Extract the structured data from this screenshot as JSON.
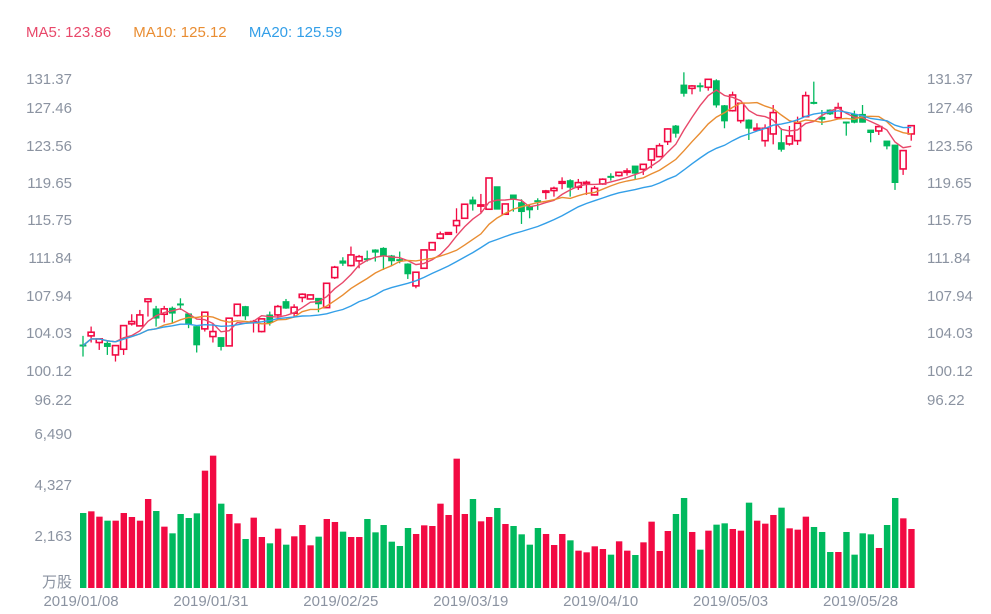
{
  "legend": {
    "ma5": "MA5: 123.86",
    "ma10": "MA10: 125.12",
    "ma20": "MA20: 125.59"
  },
  "colors": {
    "up": "#f20a43",
    "down": "#00b95e",
    "ma5": "#e8486a",
    "ma10": "#e98d32",
    "ma20": "#339fe8",
    "axis": "#8b93a1"
  },
  "chart_data": {
    "type": "candlestick",
    "title": "",
    "price_axis": {
      "labels": [
        "131.37",
        "127.46",
        "123.56",
        "119.65",
        "115.75",
        "111.84",
        "107.94",
        "104.03",
        "100.12",
        "96.22"
      ],
      "range": [
        96.22,
        131.37
      ]
    },
    "volume_axis": {
      "labels": [
        "6,490",
        "4,327",
        "2,163"
      ],
      "unit": "万股",
      "range": [
        0,
        6490
      ]
    },
    "date_labels": [
      "2019/01/08",
      "2019/01/31",
      "2019/02/25",
      "2019/03/19",
      "2019/04/10",
      "2019/05/03",
      "2019/05/28"
    ],
    "date_label_indices": [
      0,
      16,
      32,
      48,
      64,
      80,
      96
    ],
    "ma_periods": [
      5,
      10,
      20
    ],
    "ohlc_fields": [
      "open",
      "high",
      "low",
      "close"
    ],
    "ohlc": [
      [
        103.82,
        104.76,
        102.61,
        103.75
      ],
      [
        104.76,
        105.73,
        104.07,
        105.14
      ],
      [
        104.07,
        104.45,
        103.3,
        104.45
      ],
      [
        103.99,
        104.17,
        102.78,
        103.65
      ],
      [
        102.78,
        103.75,
        102.09,
        103.75
      ],
      [
        103.37,
        105.83,
        102.78,
        105.83
      ],
      [
        106.01,
        107.01,
        105.83,
        106.25
      ],
      [
        105.8,
        107.46,
        105.73,
        106.94
      ],
      [
        108.33,
        108.67,
        106.77,
        108.6
      ],
      [
        107.57,
        107.88,
        105.73,
        106.6
      ],
      [
        107.01,
        107.88,
        106.15,
        107.57
      ],
      [
        107.64,
        107.81,
        106.08,
        107.12
      ],
      [
        108.09,
        108.67,
        107.46,
        108.02
      ],
      [
        107.05,
        107.12,
        105.56,
        106.01
      ],
      [
        105.73,
        105.8,
        103.03,
        103.82
      ],
      [
        105.49,
        107.22,
        105.21,
        107.22
      ],
      [
        104.69,
        106.01,
        104.07,
        105.21
      ],
      [
        104.59,
        104.59,
        103.24,
        103.65
      ],
      [
        103.72,
        106.6,
        103.72,
        106.6
      ],
      [
        106.87,
        108.05,
        106.77,
        108.05
      ],
      [
        107.81,
        107.88,
        106.42,
        106.84
      ],
      [
        106.15,
        106.42,
        105.11,
        106.25
      ],
      [
        105.21,
        106.53,
        105.11,
        106.53
      ],
      [
        106.94,
        107.29,
        105.83,
        106.15
      ],
      [
        106.94,
        107.98,
        106.42,
        107.81
      ],
      [
        108.33,
        108.6,
        107.57,
        107.64
      ],
      [
        107.12,
        108.05,
        106.7,
        107.74
      ],
      [
        108.75,
        109.19,
        108.26,
        109.09
      ],
      [
        108.6,
        109.09,
        108.6,
        109.02
      ],
      [
        108.67,
        108.67,
        107.22,
        108.09
      ],
      [
        107.7,
        110.23,
        107.7,
        110.23
      ],
      [
        110.82,
        112.04,
        110.68,
        111.9
      ],
      [
        112.56,
        112.94,
        112.04,
        112.31
      ],
      [
        112.07,
        114.05,
        111.97,
        113.18
      ],
      [
        112.56,
        113.18,
        111.79,
        113.0
      ],
      [
        112.8,
        113.63,
        112.49,
        112.73
      ],
      [
        113.7,
        113.77,
        112.49,
        113.46
      ],
      [
        113.87,
        113.98,
        111.62,
        113.08
      ],
      [
        113.08,
        113.18,
        112.04,
        112.56
      ],
      [
        112.7,
        113.53,
        112.31,
        112.63
      ],
      [
        112.24,
        112.31,
        110.68,
        111.21
      ],
      [
        109.96,
        111.45,
        109.71,
        111.38
      ],
      [
        111.79,
        113.7,
        111.79,
        113.7
      ],
      [
        113.7,
        114.46,
        113.7,
        114.46
      ],
      [
        114.91,
        115.61,
        114.81,
        115.36
      ],
      [
        115.33,
        115.5,
        115.26,
        115.5
      ],
      [
        116.23,
        118.03,
        115.43,
        116.75
      ],
      [
        116.99,
        118.45,
        116.99,
        118.45
      ],
      [
        118.9,
        119.24,
        117.79,
        118.48
      ],
      [
        118.27,
        119.52,
        117.58,
        118.38
      ],
      [
        117.93,
        121.18,
        117.93,
        121.18
      ],
      [
        120.28,
        120.28,
        117.93,
        117.93
      ],
      [
        117.41,
        118.48,
        117.41,
        118.48
      ],
      [
        119.42,
        119.42,
        117.68,
        118.96
      ],
      [
        118.62,
        118.97,
        116.4,
        117.68
      ],
      [
        118.2,
        118.38,
        116.99,
        117.86
      ],
      [
        118.83,
        119.07,
        117.86,
        118.76
      ],
      [
        119.69,
        119.94,
        118.97,
        119.83
      ],
      [
        119.87,
        120.28,
        119.24,
        120.11
      ],
      [
        120.63,
        121.25,
        120.01,
        120.8
      ],
      [
        120.91,
        121.05,
        119.24,
        120.21
      ],
      [
        120.21,
        121.08,
        119.94,
        120.7
      ],
      [
        120.63,
        120.91,
        119.42,
        120.73
      ],
      [
        119.42,
        120.35,
        119.35,
        120.11
      ],
      [
        120.56,
        121.15,
        120.46,
        121.05
      ],
      [
        121.36,
        121.67,
        120.91,
        121.29
      ],
      [
        121.43,
        121.84,
        121.32,
        121.77
      ],
      [
        121.77,
        122.19,
        121.43,
        121.91
      ],
      [
        122.43,
        122.43,
        120.98,
        121.67
      ],
      [
        122.08,
        122.6,
        121.5,
        122.6
      ],
      [
        123.05,
        124.27,
        122.19,
        124.2
      ],
      [
        123.4,
        124.79,
        123.33,
        124.54
      ],
      [
        124.96,
        126.35,
        124.61,
        126.28
      ],
      [
        126.59,
        126.69,
        125.38,
        125.83
      ],
      [
        130.85,
        132.17,
        129.64,
        129.98
      ],
      [
        130.5,
        130.85,
        129.88,
        130.75
      ],
      [
        130.78,
        131.09,
        130.16,
        130.71
      ],
      [
        130.61,
        131.44,
        130.26,
        131.44
      ],
      [
        131.3,
        131.44,
        128.5,
        128.77
      ],
      [
        128.7,
        128.77,
        126.35,
        127.11
      ],
      [
        128.18,
        130.16,
        128.08,
        129.81
      ],
      [
        127.14,
        129.01,
        126.87,
        128.95
      ],
      [
        127.21,
        127.28,
        125.13,
        126.35
      ],
      [
        126.17,
        126.87,
        126.1,
        126.35
      ],
      [
        125.06,
        126.76,
        124.44,
        126.35
      ],
      [
        125.76,
        128.77,
        124.68,
        127.98
      ],
      [
        124.86,
        126.35,
        123.92,
        124.16
      ],
      [
        124.72,
        126.59,
        124.54,
        125.55
      ],
      [
        125.06,
        127.56,
        124.61,
        126.87
      ],
      [
        127.56,
        130.16,
        127.56,
        129.74
      ],
      [
        129.05,
        131.2,
        128.84,
        128.95
      ],
      [
        127.49,
        128.25,
        126.69,
        127.28
      ],
      [
        128.25,
        128.32,
        127.73,
        127.84
      ],
      [
        127.45,
        129.01,
        127.38,
        128.5
      ],
      [
        127.01,
        127.04,
        125.58,
        126.94
      ],
      [
        127.8,
        128.18,
        126.87,
        126.97
      ],
      [
        127.8,
        128.77,
        126.94,
        126.97
      ],
      [
        126.17,
        126.17,
        124.89,
        125.9
      ],
      [
        126.07,
        126.52,
        125.65,
        126.52
      ],
      [
        125.03,
        125.03,
        124.16,
        124.51
      ],
      [
        124.61,
        124.61,
        119.94,
        120.7
      ],
      [
        122.12,
        124.03,
        121.5,
        124.03
      ],
      [
        125.76,
        126.62,
        125.06,
        126.62
      ]
    ],
    "volume": [
      3181,
      3252,
      3026,
      2856,
      2856,
      3181,
      3012,
      2856,
      3775,
      3266,
      2602,
      2319,
      3139,
      2969,
      3167,
      4977,
      5614,
      3577,
      3139,
      2743,
      2079,
      2984,
      2163,
      1895,
      2517,
      1838,
      2192,
      2672,
      1810,
      2178,
      2927,
      2800,
      2390,
      2163,
      2163,
      2927,
      2361,
      2672,
      1965,
      1782,
      2545,
      2291,
      2658,
      2630,
      3577,
      3097,
      5486,
      3139,
      3775,
      2828,
      3012,
      3394,
      2715,
      2630,
      2277,
      1838,
      2545,
      2291,
      1824,
      2291,
      2022,
      1584,
      1513,
      1768,
      1654,
      1414,
      1980,
      1584,
      1400,
      1937,
      2814,
      1570,
      2418,
      3139,
      3818,
      2376,
      1626,
      2432,
      2687,
      2743,
      2503,
      2432,
      3620,
      2856,
      2729,
      3097,
      3408,
      2531,
      2475,
      3026,
      2588,
      2376,
      1527,
      1527,
      2376,
      1414,
      2319,
      2277,
      1697,
      2672,
      3818,
      2955,
      2503
    ]
  }
}
